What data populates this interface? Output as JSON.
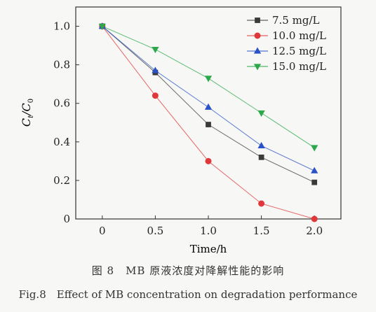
{
  "chart_data": {
    "type": "line",
    "xlabel": "Time/h",
    "ylabel_main": "C",
    "ylabel_sub_t": "t",
    "ylabel_slash": "/C",
    "ylabel_sub_0": "0",
    "x": [
      0,
      0.5,
      1.0,
      1.5,
      2.0
    ],
    "x_tick_labels": [
      "0",
      "0.5",
      "1.0",
      "1.5",
      "2.0"
    ],
    "y_ticks": [
      0,
      0.2,
      0.4,
      0.6,
      0.8,
      1.0
    ],
    "y_tick_labels": [
      "0",
      "0.2",
      "0.4",
      "0.6",
      "0.8",
      "1.0"
    ],
    "xlim": [
      -0.25,
      2.25
    ],
    "ylim": [
      0,
      1.1
    ],
    "grid": false,
    "legend_position": "top-right",
    "series": [
      {
        "name": "7.5 mg/L",
        "values": [
          1.0,
          0.76,
          0.49,
          0.32,
          0.19
        ],
        "color": "#3a3a3a",
        "marker": "square"
      },
      {
        "name": "10.0 mg/L",
        "values": [
          1.0,
          0.64,
          0.3,
          0.08,
          0.0
        ],
        "color": "#e0383a",
        "marker": "circle"
      },
      {
        "name": "12.5 mg/L",
        "values": [
          1.0,
          0.77,
          0.58,
          0.38,
          0.25
        ],
        "color": "#2a52c8",
        "marker": "triangle-up"
      },
      {
        "name": "15.0 mg/L",
        "values": [
          1.0,
          0.88,
          0.73,
          0.55,
          0.37
        ],
        "color": "#2aa84a",
        "marker": "triangle-down"
      }
    ]
  },
  "caption": {
    "cn": "图 8　MB 原液浓度对降解性能的影响",
    "en": "Fig.8　Effect of MB concentration on degradation performance"
  }
}
